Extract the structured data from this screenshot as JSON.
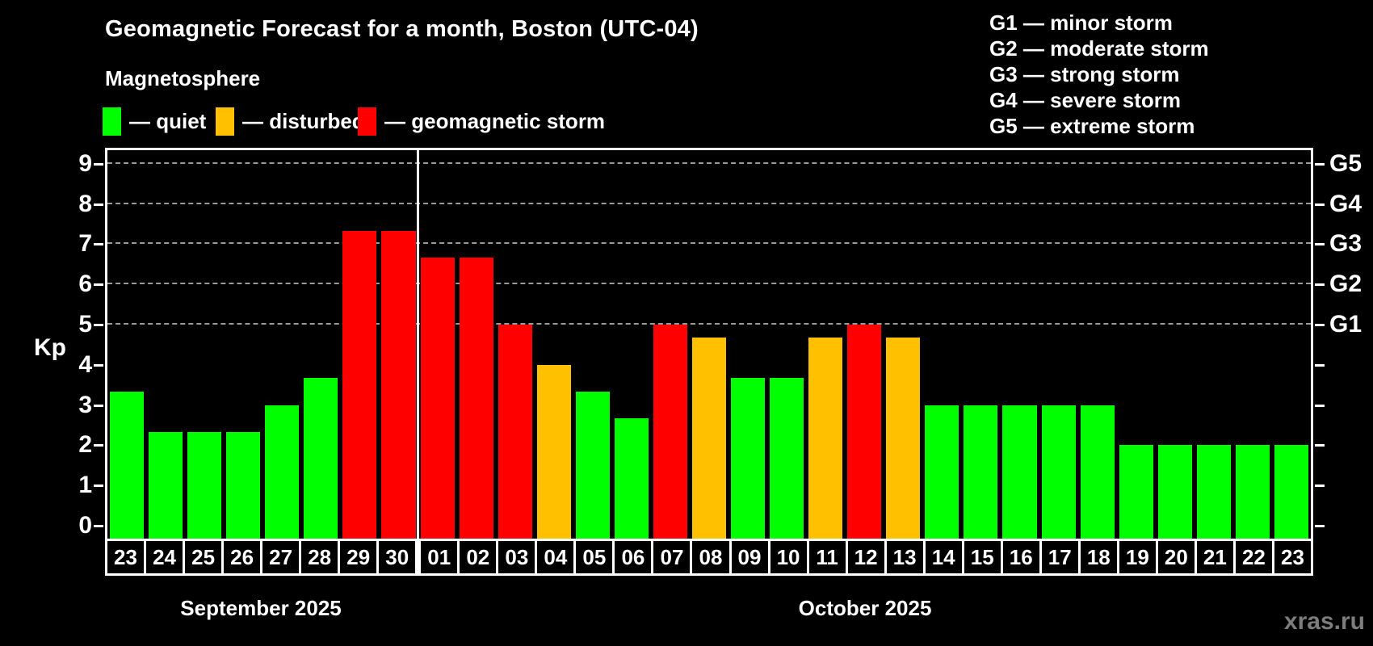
{
  "header": {
    "title": "Geomagnetic Forecast for a month, Boston (UTC-04)",
    "subtitle": "Magnetosphere"
  },
  "legend": {
    "quiet_label": "— quiet",
    "disturbed_label": "— disturbed",
    "storm_label": "— geomagnetic storm"
  },
  "g_scale_legend": [
    "G1 — minor storm",
    "G2 — moderate storm",
    "G3 — strong storm",
    "G4 — severe storm",
    "G5 — extreme storm"
  ],
  "watermark": "xras.ru",
  "colors": {
    "quiet": "#00ff00",
    "disturbed": "#ffc000",
    "storm": "#ff0000",
    "background": "#000000",
    "gridline": "#9a9a9a",
    "axis": "#ffffff",
    "watermark": "#7d7d7d"
  },
  "chart_data": {
    "type": "bar",
    "title": "Geomagnetic Forecast for a month, Boston (UTC-04)",
    "xlabel": "",
    "ylabel": "Kp",
    "ylim": [
      0,
      9
    ],
    "grid": "dashed horizontal at Kp 5-9 only",
    "y_ticks": [
      0,
      1,
      2,
      3,
      4,
      5,
      6,
      7,
      8,
      9
    ],
    "right_axis_labels": {
      "5": "G1",
      "6": "G2",
      "7": "G3",
      "8": "G4",
      "9": "G5"
    },
    "legend_position": "top-left",
    "months": [
      {
        "label": "September 2025",
        "days": 8
      },
      {
        "label": "October 2025",
        "days": 23
      }
    ],
    "categories": [
      "23",
      "24",
      "25",
      "26",
      "27",
      "28",
      "29",
      "30",
      "01",
      "02",
      "03",
      "04",
      "05",
      "06",
      "07",
      "08",
      "09",
      "10",
      "11",
      "12",
      "13",
      "14",
      "15",
      "16",
      "17",
      "18",
      "19",
      "20",
      "21",
      "22",
      "23"
    ],
    "values": [
      3.33,
      2.33,
      2.33,
      2.33,
      3.0,
      3.67,
      7.33,
      7.33,
      6.67,
      6.67,
      5.0,
      4.0,
      3.33,
      2.67,
      5.0,
      4.67,
      3.67,
      3.67,
      4.67,
      5.0,
      4.67,
      3.0,
      3.0,
      3.0,
      3.0,
      3.0,
      2.0,
      2.0,
      2.0,
      2.0,
      2.0
    ],
    "statuses": [
      "quiet",
      "quiet",
      "quiet",
      "quiet",
      "quiet",
      "quiet",
      "storm",
      "storm",
      "storm",
      "storm",
      "storm",
      "disturbed",
      "quiet",
      "quiet",
      "storm",
      "disturbed",
      "quiet",
      "quiet",
      "disturbed",
      "storm",
      "disturbed",
      "quiet",
      "quiet",
      "quiet",
      "quiet",
      "quiet",
      "quiet",
      "quiet",
      "quiet",
      "quiet",
      "quiet"
    ]
  }
}
